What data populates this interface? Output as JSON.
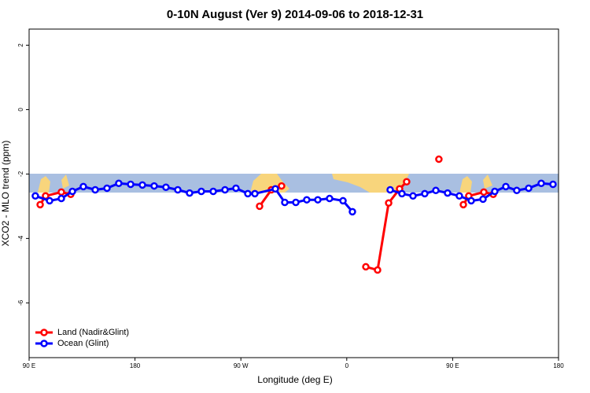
{
  "chart_data": {
    "type": "line",
    "title": "0-10N August (Ver 9)   2014-09-06 to 2018-12-31",
    "x_label": "Longitude (deg E)",
    "y_label": "XCO2 - MLO trend (ppm)",
    "xlim": [
      90,
      540
    ],
    "xticks": [
      {
        "value": 90,
        "label": "90 E"
      },
      180,
      {
        "value": 270,
        "label": "90 W"
      },
      {
        "value": 360,
        "label": "0"
      },
      {
        "value": 450,
        "label": "90 E"
      },
      {
        "value": 540,
        "label": "180"
      }
    ],
    "ylim": [
      -7.7,
      2.5
    ],
    "yticks": [
      2,
      0,
      -2,
      -4,
      -6
    ],
    "legend": "bottom-left",
    "series": [
      {
        "name": "Land (Nadir&Glint)",
        "color": "#ff0000",
        "x": [
          99.4,
          104.0,
          117.4,
          125.4,
          null,
          285.9,
          295.9,
          304.6,
          null,
          376.2,
          386.2,
          395.6,
          404.9,
          410.9,
          null,
          438.3,
          null,
          459.1,
          463.7,
          476.5,
          484.5
        ],
        "values": [
          -2.95,
          -2.68,
          -2.56,
          -2.63,
          null,
          -3.0,
          -2.49,
          -2.37,
          null,
          -4.88,
          -4.98,
          -2.9,
          -2.46,
          -2.24,
          null,
          -1.54,
          null,
          -2.95,
          -2.68,
          -2.56,
          -2.63
        ]
      },
      {
        "name": "Ocean (Glint)",
        "color": "#0000ff",
        "x": [
          95.3,
          107.4,
          117.4,
          126.8,
          136.1,
          146.2,
          156.2,
          166.2,
          176.3,
          186.3,
          196.3,
          206.3,
          216.4,
          226.4,
          236.4,
          246.5,
          256.5,
          265.8,
          275.9,
          281.9,
          299.3,
          307.3,
          316.7,
          326.0,
          335.4,
          345.4,
          356.8,
          364.8,
          null,
          396.9,
          406.9,
          416.3,
          426.3,
          435.7,
          445.7,
          455.7,
          465.8,
          475.8,
          485.8,
          495.2,
          504.5,
          514.6,
          525.3,
          535.3
        ],
        "values": [
          -2.68,
          -2.83,
          -2.76,
          -2.54,
          -2.39,
          -2.49,
          -2.44,
          -2.29,
          -2.32,
          -2.34,
          -2.37,
          -2.41,
          -2.49,
          -2.59,
          -2.54,
          -2.54,
          -2.49,
          -2.44,
          -2.61,
          -2.61,
          -2.46,
          -2.88,
          -2.88,
          -2.8,
          -2.8,
          -2.76,
          -2.83,
          -3.17,
          null,
          -2.49,
          -2.61,
          -2.68,
          -2.61,
          -2.51,
          -2.59,
          -2.68,
          -2.83,
          -2.78,
          -2.54,
          -2.39,
          -2.51,
          -2.44,
          -2.29,
          -2.32
        ]
      }
    ]
  }
}
